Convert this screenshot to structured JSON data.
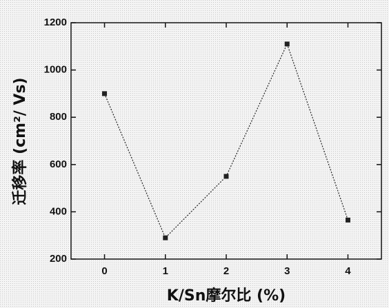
{
  "chart_data": {
    "type": "line",
    "x_label": "K/Sn摩尔比 (%)",
    "y_label": "迁移率 (cm²/ Vs)",
    "x": [
      0,
      1,
      2,
      3,
      4
    ],
    "values": [
      900,
      290,
      550,
      1110,
      365
    ],
    "color": "#222222",
    "xlim": [
      -0.55,
      4.55
    ],
    "xticks": [
      0,
      1,
      2,
      3,
      4
    ],
    "ylim": [
      200,
      1200
    ],
    "yticks": [
      200,
      400,
      600,
      800,
      1000,
      1200
    ]
  }
}
